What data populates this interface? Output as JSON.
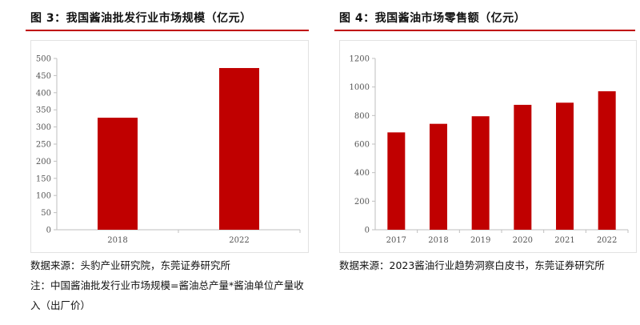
{
  "left": {
    "title": "图 3：我国酱油批发行业市场规模（亿元）",
    "source": "数据来源：头豹产业研究院，东莞证券研究所",
    "note": "注：中国酱油批发行业市场规模=酱油总产量*酱油单位产量收入（出厂价）"
  },
  "right": {
    "title": "图 4：我国酱油市场零售额（亿元）",
    "source": "数据来源：2023酱油行业趋势洞察白皮书，东莞证券研究所"
  },
  "colors": {
    "bar": "#c00000",
    "rule": "#c00000"
  },
  "chart_data": [
    {
      "type": "bar",
      "title": "我国酱油批发行业市场规模（亿元）",
      "categories": [
        "2018",
        "2022"
      ],
      "values": [
        327,
        472
      ],
      "ylim": [
        0,
        500
      ],
      "yticks": [
        0,
        50,
        100,
        150,
        200,
        250,
        300,
        350,
        400,
        450,
        500
      ],
      "grid": false
    },
    {
      "type": "bar",
      "title": "我国酱油市场零售额（亿元）",
      "categories": [
        "2017",
        "2018",
        "2019",
        "2020",
        "2021",
        "2022"
      ],
      "values": [
        682,
        742,
        795,
        875,
        890,
        970
      ],
      "ylim": [
        0,
        1200
      ],
      "yticks": [
        0,
        200,
        400,
        600,
        800,
        1000,
        1200
      ],
      "grid": false
    }
  ]
}
